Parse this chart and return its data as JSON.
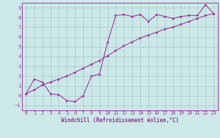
{
  "title": "",
  "xlabel": "Windchill (Refroidissement éolien,°C)",
  "ylabel": "",
  "bg_color": "#cce8e8",
  "grid_color": "#aacccc",
  "line_color": "#993399",
  "marker_color": "#993399",
  "xlim": [
    -0.5,
    23.5
  ],
  "ylim": [
    -1.5,
    9.5
  ],
  "xticks": [
    0,
    1,
    2,
    3,
    4,
    5,
    6,
    7,
    8,
    9,
    10,
    11,
    12,
    13,
    14,
    15,
    16,
    17,
    18,
    19,
    20,
    21,
    22,
    23
  ],
  "yticks": [
    -1,
    0,
    1,
    2,
    3,
    4,
    5,
    6,
    7,
    8,
    9
  ],
  "curve1_x": [
    0,
    1,
    2,
    3,
    4,
    5,
    6,
    7,
    8,
    9,
    10,
    11,
    12,
    13,
    14,
    15,
    16,
    17,
    18,
    19,
    20,
    21,
    22,
    23
  ],
  "curve1_y": [
    0.2,
    1.7,
    1.4,
    0.2,
    0.1,
    -0.5,
    -0.6,
    0.0,
    2.0,
    2.2,
    5.5,
    8.2,
    8.3,
    8.1,
    8.3,
    7.6,
    8.3,
    8.1,
    7.9,
    8.1,
    8.2,
    8.2,
    9.3,
    8.4
  ],
  "curve2_x": [
    0,
    1,
    2,
    3,
    4,
    5,
    6,
    7,
    8,
    9,
    10,
    11,
    12,
    13,
    14,
    15,
    16,
    17,
    18,
    19,
    20,
    21,
    22,
    23
  ],
  "curve2_y": [
    0.2,
    0.6,
    1.1,
    1.4,
    1.7,
    2.0,
    2.4,
    2.8,
    3.2,
    3.6,
    4.1,
    4.6,
    5.1,
    5.5,
    5.9,
    6.2,
    6.5,
    6.8,
    7.0,
    7.3,
    7.6,
    7.9,
    8.2,
    8.4
  ],
  "tick_fontsize": 5.0,
  "xlabel_fontsize": 5.5
}
